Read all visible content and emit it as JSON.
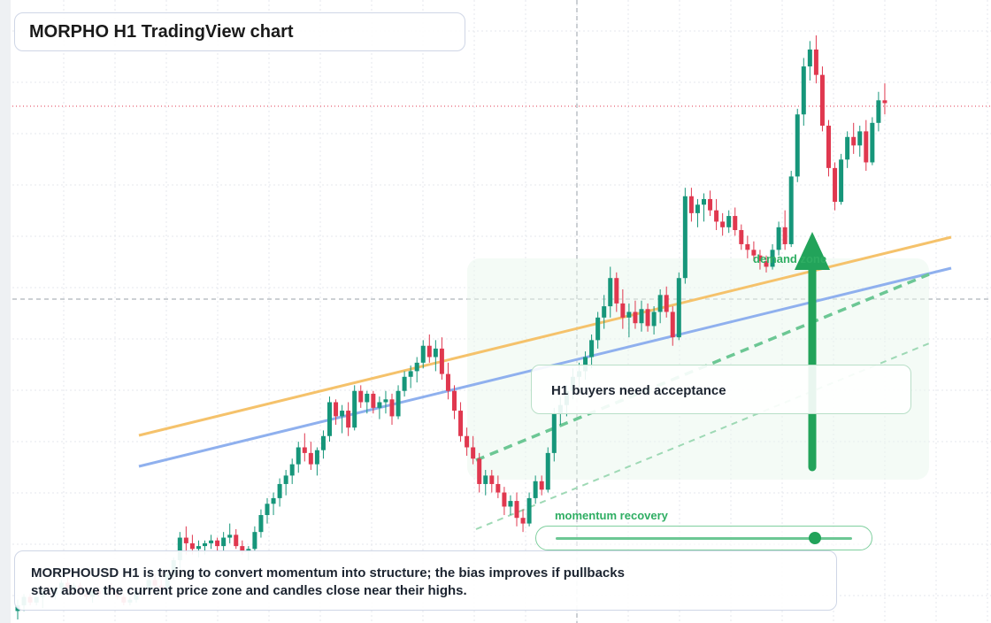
{
  "title": "MORPHO H1 TradingView chart",
  "note": "H1 buyers need acceptance",
  "description_lines": [
    "MORPHOUSD H1 is trying to convert momentum into structure; the bias improves if pullbacks",
    "stay above the current price zone and candles close near their highs."
  ],
  "labels": {
    "demand": "demand zone",
    "momentum": "momentum recovery"
  },
  "colors": {
    "up": "#16967a",
    "down": "#e0384f",
    "resistance": "#f5c26b",
    "trend": "#8fb0ee",
    "accent_green": "#22a35a"
  },
  "momentum_level": 0.87,
  "chart_data": {
    "type": "candlestick",
    "symbol": "MORPHOUSD",
    "timeframe": "H1",
    "price_scale": "arbitrary",
    "candles": [
      [
        10,
        14,
        7,
        12
      ],
      [
        12,
        16,
        10,
        15
      ],
      [
        15,
        16,
        12,
        13
      ],
      [
        13,
        15,
        12,
        15
      ],
      [
        15,
        18,
        11,
        17
      ],
      [
        17,
        19,
        15,
        16
      ],
      [
        16,
        18,
        14,
        18
      ],
      [
        18,
        21,
        16,
        20
      ],
      [
        20,
        22,
        17,
        18
      ],
      [
        18,
        20,
        17,
        19
      ],
      [
        19,
        20,
        15,
        16
      ],
      [
        16,
        18,
        14,
        15
      ],
      [
        15,
        17,
        13,
        17
      ],
      [
        17,
        18,
        15,
        16
      ],
      [
        16,
        19,
        15,
        18
      ],
      [
        18,
        20,
        16,
        17
      ],
      [
        17,
        18,
        14,
        15
      ],
      [
        15,
        16,
        12,
        13
      ],
      [
        13,
        15,
        12,
        14
      ],
      [
        14,
        18,
        13,
        17
      ],
      [
        17,
        19,
        15,
        18
      ],
      [
        18,
        22,
        16,
        21
      ],
      [
        21,
        23,
        18,
        19
      ],
      [
        19,
        21,
        16,
        18
      ],
      [
        18,
        24,
        17,
        23
      ],
      [
        23,
        29,
        21,
        28
      ],
      [
        28,
        38,
        25,
        36
      ],
      [
        36,
        40,
        30,
        34
      ],
      [
        34,
        37,
        30,
        32
      ],
      [
        32,
        35,
        29,
        33
      ],
      [
        33,
        35,
        30,
        34
      ],
      [
        34,
        37,
        32,
        35
      ],
      [
        35,
        36,
        31,
        33
      ],
      [
        33,
        38,
        31,
        36
      ],
      [
        36,
        41,
        34,
        37
      ],
      [
        37,
        39,
        32,
        33
      ],
      [
        33,
        35,
        30,
        31
      ],
      [
        31,
        33,
        28,
        32
      ],
      [
        32,
        40,
        31,
        38
      ],
      [
        38,
        46,
        36,
        44
      ],
      [
        44,
        50,
        41,
        48
      ],
      [
        48,
        52,
        44,
        50
      ],
      [
        50,
        57,
        47,
        55
      ],
      [
        55,
        60,
        51,
        58
      ],
      [
        58,
        64,
        55,
        62
      ],
      [
        62,
        70,
        59,
        68
      ],
      [
        68,
        73,
        63,
        66
      ],
      [
        66,
        70,
        60,
        62
      ],
      [
        62,
        68,
        58,
        67
      ],
      [
        67,
        74,
        64,
        72
      ],
      [
        72,
        86,
        70,
        84
      ],
      [
        84,
        85,
        76,
        79
      ],
      [
        79,
        83,
        73,
        81
      ],
      [
        81,
        84,
        72,
        75
      ],
      [
        75,
        90,
        74,
        88
      ],
      [
        88,
        90,
        82,
        84
      ],
      [
        84,
        88,
        80,
        87
      ],
      [
        87,
        88,
        80,
        82
      ],
      [
        82,
        86,
        78,
        84
      ],
      [
        84,
        88,
        80,
        85
      ],
      [
        85,
        87,
        76,
        79
      ],
      [
        79,
        90,
        78,
        88
      ],
      [
        88,
        95,
        86,
        93
      ],
      [
        93,
        97,
        89,
        95
      ],
      [
        95,
        100,
        91,
        98
      ],
      [
        98,
        106,
        96,
        104
      ],
      [
        104,
        108,
        98,
        100
      ],
      [
        100,
        106,
        95,
        103
      ],
      [
        103,
        107,
        92,
        94
      ],
      [
        94,
        98,
        85,
        88
      ],
      [
        88,
        90,
        78,
        81
      ],
      [
        81,
        84,
        70,
        72
      ],
      [
        72,
        75,
        65,
        68
      ],
      [
        68,
        72,
        62,
        64
      ],
      [
        64,
        66,
        52,
        55
      ],
      [
        55,
        60,
        51,
        58
      ],
      [
        58,
        60,
        52,
        55
      ],
      [
        55,
        58,
        50,
        52
      ],
      [
        52,
        54,
        44,
        47
      ],
      [
        47,
        51,
        44,
        49
      ],
      [
        49,
        52,
        40,
        43
      ],
      [
        43,
        46,
        38,
        41
      ],
      [
        41,
        52,
        40,
        50
      ],
      [
        50,
        58,
        48,
        56
      ],
      [
        56,
        58,
        51,
        53
      ],
      [
        53,
        68,
        52,
        66
      ],
      [
        66,
        82,
        63,
        80
      ],
      [
        80,
        86,
        76,
        83
      ],
      [
        83,
        90,
        79,
        88
      ],
      [
        88,
        96,
        85,
        93
      ],
      [
        93,
        98,
        88,
        95
      ],
      [
        95,
        102,
        92,
        100
      ],
      [
        100,
        108,
        96,
        106
      ],
      [
        106,
        116,
        103,
        114
      ],
      [
        114,
        122,
        110,
        118
      ],
      [
        118,
        132,
        114,
        128
      ],
      [
        128,
        130,
        116,
        119
      ],
      [
        119,
        124,
        110,
        114
      ],
      [
        114,
        119,
        107,
        116
      ],
      [
        116,
        120,
        110,
        112
      ],
      [
        112,
        120,
        109,
        117
      ],
      [
        117,
        119,
        109,
        111
      ],
      [
        111,
        118,
        108,
        116
      ],
      [
        116,
        124,
        112,
        122
      ],
      [
        122,
        125,
        114,
        116
      ],
      [
        116,
        118,
        104,
        107
      ],
      [
        107,
        130,
        106,
        128
      ],
      [
        128,
        160,
        126,
        157
      ],
      [
        157,
        160,
        148,
        151
      ],
      [
        151,
        156,
        146,
        154
      ],
      [
        154,
        158,
        148,
        156
      ],
      [
        156,
        159,
        150,
        152
      ],
      [
        152,
        156,
        145,
        148
      ],
      [
        148,
        151,
        143,
        146
      ],
      [
        146,
        152,
        144,
        150
      ],
      [
        150,
        153,
        143,
        145
      ],
      [
        145,
        147,
        138,
        140
      ],
      [
        140,
        143,
        135,
        138
      ],
      [
        138,
        141,
        134,
        136
      ],
      [
        136,
        138,
        131,
        134
      ],
      [
        134,
        136,
        130,
        132
      ],
      [
        132,
        140,
        131,
        138
      ],
      [
        138,
        148,
        136,
        146
      ],
      [
        146,
        152,
        138,
        140
      ],
      [
        140,
        166,
        139,
        164
      ],
      [
        164,
        188,
        162,
        186
      ],
      [
        186,
        206,
        182,
        203
      ],
      [
        203,
        212,
        198,
        209
      ],
      [
        209,
        214,
        197,
        200
      ],
      [
        200,
        203,
        180,
        182
      ],
      [
        182,
        184,
        164,
        167
      ],
      [
        167,
        169,
        152,
        155
      ],
      [
        155,
        172,
        154,
        170
      ],
      [
        170,
        180,
        167,
        178
      ],
      [
        178,
        183,
        172,
        175
      ],
      [
        175,
        182,
        171,
        180
      ],
      [
        180,
        184,
        166,
        169
      ],
      [
        169,
        185,
        168,
        183
      ],
      [
        183,
        194,
        180,
        191
      ],
      [
        191,
        197,
        186,
        190
      ]
    ]
  }
}
